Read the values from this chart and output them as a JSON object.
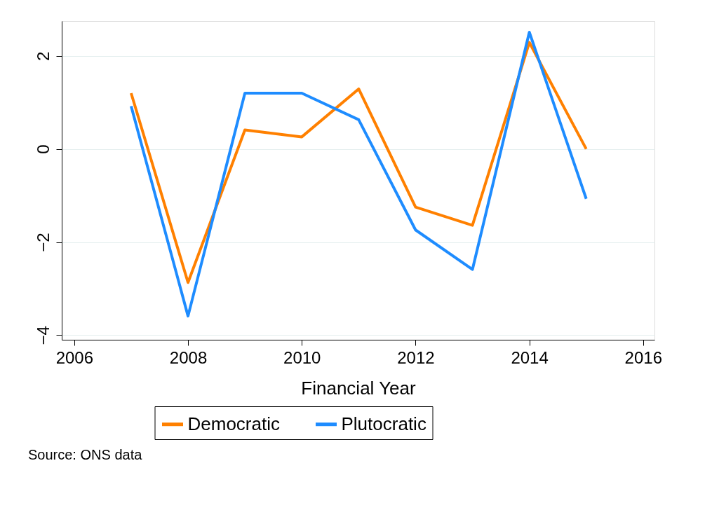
{
  "chart_data": {
    "type": "line",
    "xlabel": "Financial Year",
    "x": [
      2007,
      2008,
      2009,
      2010,
      2011,
      2012,
      2013,
      2014,
      2015
    ],
    "series": [
      {
        "name": "Democratic",
        "color": "#ff8000",
        "values": [
          1.2,
          -2.87,
          0.41,
          0.26,
          1.29,
          -1.25,
          -1.64,
          2.29,
          0
        ]
      },
      {
        "name": "Plutocratic",
        "color": "#1e8cff",
        "values": [
          0.92,
          -3.59,
          1.2,
          1.2,
          0.63,
          -1.74,
          -2.59,
          2.51,
          -1.07
        ]
      }
    ],
    "xlim": [
      2005.78,
      2016.2
    ],
    "xticks": [
      2006,
      2008,
      2010,
      2012,
      2014,
      2016
    ],
    "ylim": [
      -4.1,
      2.75
    ],
    "yticks": [
      -4,
      -2,
      0,
      2
    ],
    "grid": "y",
    "legend": "bottom",
    "marker": "none",
    "line_style": "solid",
    "annotations": [
      "Source: ONS data"
    ]
  }
}
